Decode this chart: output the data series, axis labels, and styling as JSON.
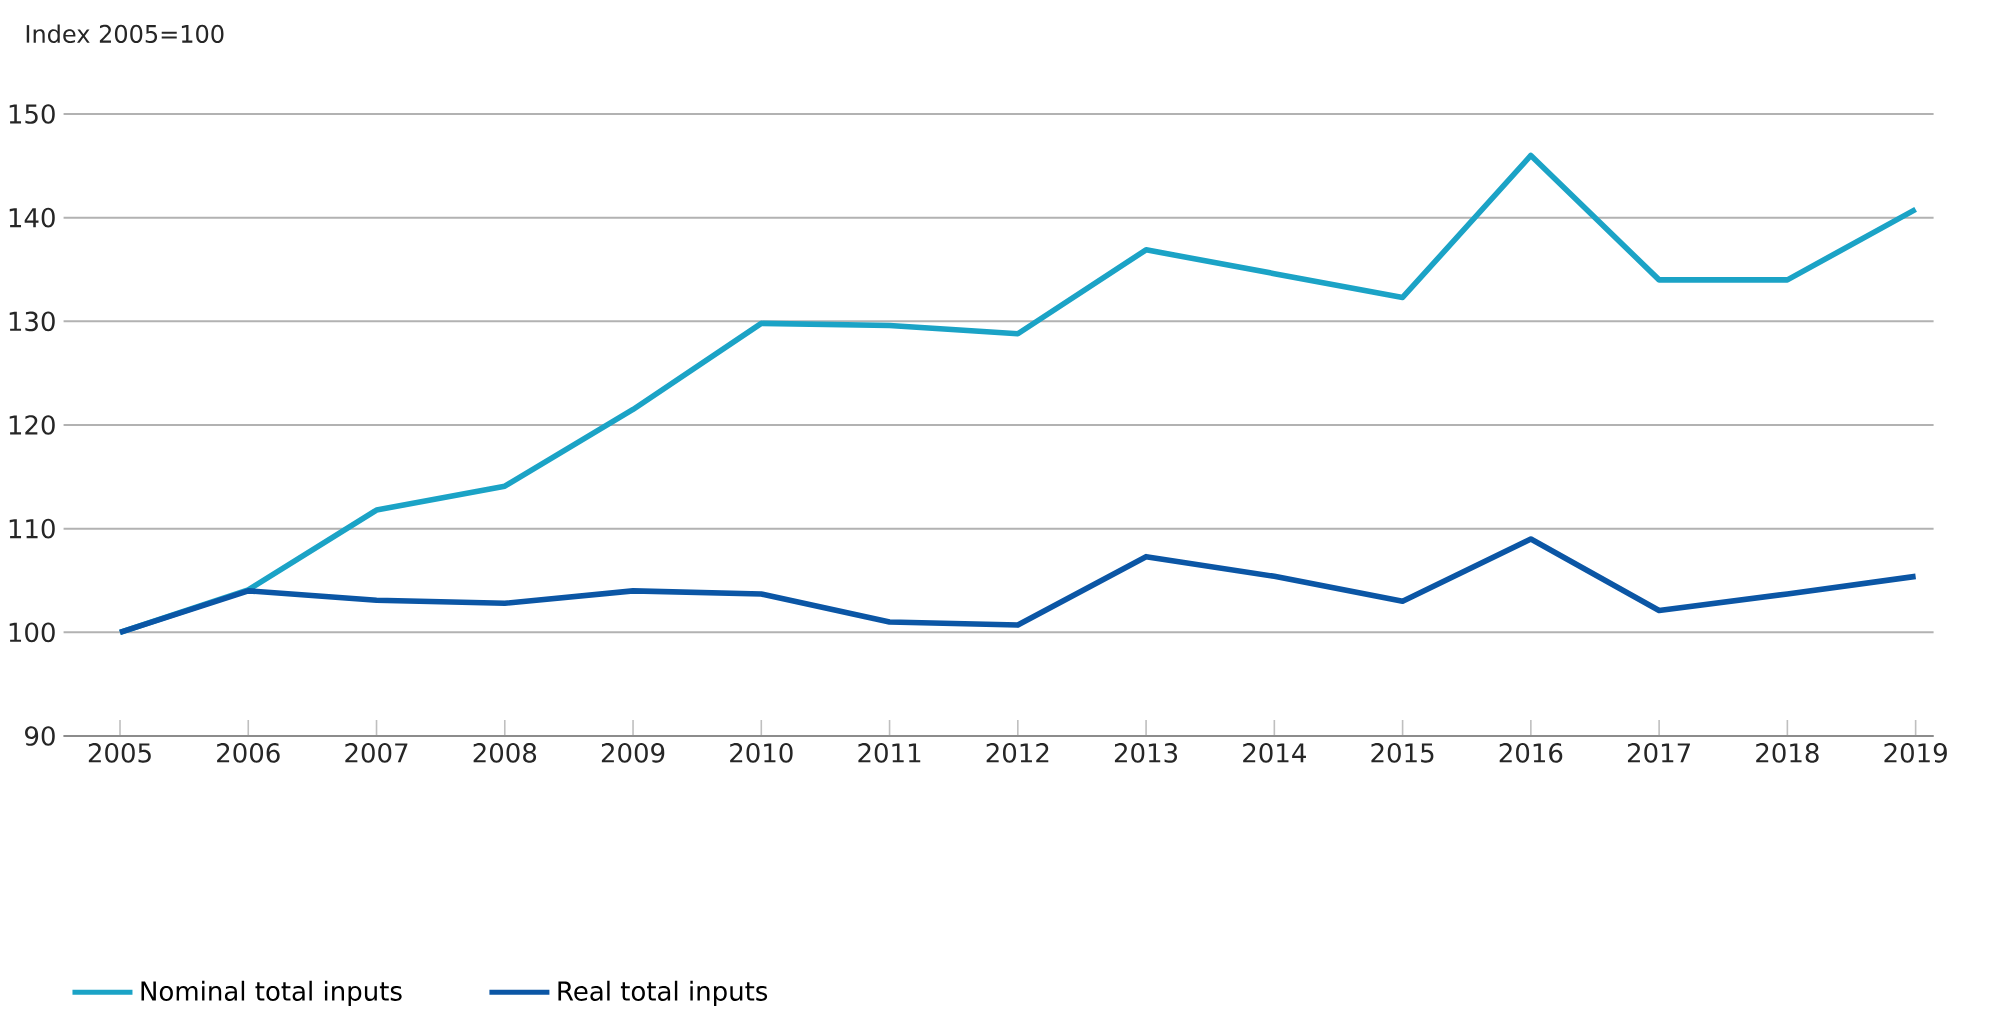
{
  "chart_data": {
    "type": "line",
    "ylabel": "Index 2005=100",
    "categories": [
      "2005",
      "2006",
      "2007",
      "2008",
      "2009",
      "2010",
      "2011",
      "2012",
      "2013",
      "2014",
      "2015",
      "2016",
      "2017",
      "2018",
      "2019"
    ],
    "series": [
      {
        "name": "Nominal total inputs",
        "color": "#1ba3c6",
        "values": [
          100,
          104.1,
          111.8,
          114.1,
          121.5,
          129.8,
          129.6,
          128.8,
          136.9,
          134.6,
          132.3,
          146,
          134,
          134,
          140.8
        ]
      },
      {
        "name": "Real total inputs",
        "color": "#0b56a5",
        "values": [
          100,
          104,
          103.1,
          102.8,
          104,
          103.7,
          101,
          100.7,
          107.3,
          105.4,
          103,
          109,
          102.1,
          103.7,
          105.4
        ]
      }
    ],
    "ylim": [
      90,
      150
    ],
    "yticks": [
      90,
      100,
      110,
      120,
      130,
      140,
      150
    ],
    "grid": "y",
    "legend": "bottom left",
    "marker": "none",
    "line_style": "solid"
  }
}
